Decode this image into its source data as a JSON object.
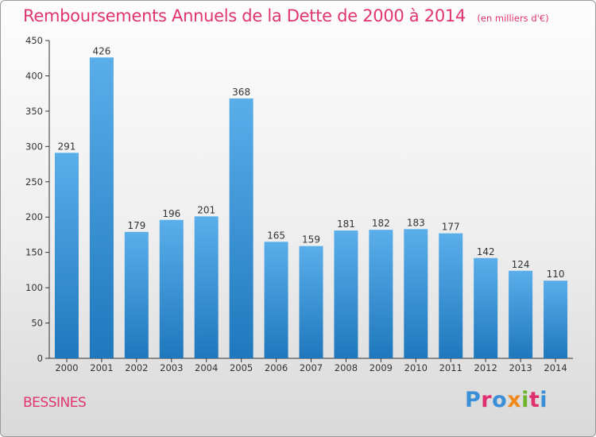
{
  "chart_data": {
    "type": "bar",
    "title": "Remboursements Annuels de la Dette de 2000 à 2014",
    "unit_note": "(en milliers d'€)",
    "categories": [
      "2000",
      "2001",
      "2002",
      "2003",
      "2004",
      "2005",
      "2006",
      "2007",
      "2008",
      "2009",
      "2010",
      "2011",
      "2012",
      "2013",
      "2014"
    ],
    "values": [
      291,
      426,
      179,
      196,
      201,
      368,
      165,
      159,
      181,
      182,
      183,
      177,
      142,
      124,
      110
    ],
    "ylim": [
      0,
      450
    ],
    "yticks": [
      0,
      50,
      100,
      150,
      200,
      250,
      300,
      350,
      400,
      450
    ],
    "grid": false,
    "legend": "none"
  },
  "place_name": "BESSINES",
  "logo": {
    "letters": [
      "P",
      "r",
      "o",
      "x",
      "i",
      "t",
      "i"
    ],
    "colors": [
      "#3a8fd8",
      "#e03070",
      "#3a8fd8",
      "#f08a1a",
      "#6cb52c",
      "#e03070",
      "#3a8fd8"
    ]
  },
  "colors": {
    "accent": "#e0356e",
    "bar_top": "#5aaeea",
    "bar_bottom": "#1f78bd",
    "axis": "#333333"
  }
}
